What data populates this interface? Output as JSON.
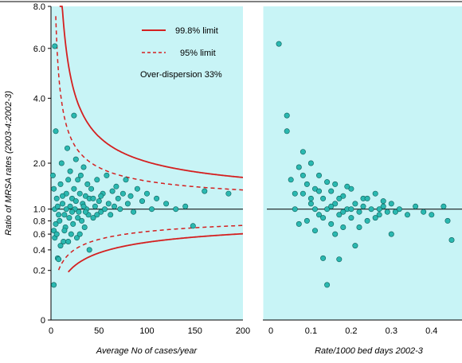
{
  "chart_data": [
    {
      "type": "scatter",
      "panel": "left",
      "xlabel": "Average No of cases/year",
      "ylabel": "Ratio of MRSA rates (2003-4:2002-3)",
      "xlim": [
        0,
        200
      ],
      "ylim": [
        0,
        8.0
      ],
      "y_scale": "sqrt",
      "x_ticks": [
        "0",
        "50",
        "100",
        "150",
        "200"
      ],
      "y_ticks": [
        "0",
        "0.2",
        "0.4",
        "0.6",
        "0.8",
        "1.0",
        "2.0",
        "4.0",
        "6.0",
        "8.0"
      ],
      "reference_line": 1.0,
      "legend": {
        "position": "top-right",
        "entries": [
          "99.8% limit",
          "95% limit"
        ],
        "note": "Over-dispersion 33%"
      },
      "limit_colors": {
        "limit_998": "#d42020",
        "limit_95": "#d42020"
      },
      "background": "#c8f4f6",
      "point_color": "#2ab8b0",
      "points": [
        {
          "x": 3,
          "y": 0.1
        },
        {
          "x": 5,
          "y": 2.9
        },
        {
          "x": 4,
          "y": 6.1
        },
        {
          "x": 3,
          "y": 0.65
        },
        {
          "x": 4,
          "y": 0.55
        },
        {
          "x": 6,
          "y": 0.6
        },
        {
          "x": 5,
          "y": 0.75
        },
        {
          "x": 7,
          "y": 0.31
        },
        {
          "x": 8,
          "y": 0.3
        },
        {
          "x": 2,
          "y": 1.7
        },
        {
          "x": 3,
          "y": 1.4
        },
        {
          "x": 4,
          "y": 1.0
        },
        {
          "x": 6,
          "y": 1.2
        },
        {
          "x": 8,
          "y": 0.9
        },
        {
          "x": 10,
          "y": 1.5
        },
        {
          "x": 11,
          "y": 2.0
        },
        {
          "x": 12,
          "y": 1.1
        },
        {
          "x": 13,
          "y": 0.5
        },
        {
          "x": 14,
          "y": 0.9
        },
        {
          "x": 15,
          "y": 0.7
        },
        {
          "x": 16,
          "y": 1.3
        },
        {
          "x": 17,
          "y": 2.4
        },
        {
          "x": 18,
          "y": 1.6
        },
        {
          "x": 19,
          "y": 0.85
        },
        {
          "x": 20,
          "y": 1.8
        },
        {
          "x": 21,
          "y": 0.6
        },
        {
          "x": 22,
          "y": 1.2
        },
        {
          "x": 23,
          "y": 0.75
        },
        {
          "x": 24,
          "y": 1.4
        },
        {
          "x": 25,
          "y": 1.0
        },
        {
          "x": 26,
          "y": 2.1
        },
        {
          "x": 27,
          "y": 0.55
        },
        {
          "x": 28,
          "y": 1.6
        },
        {
          "x": 29,
          "y": 0.95
        },
        {
          "x": 30,
          "y": 1.3
        },
        {
          "x": 31,
          "y": 1.7
        },
        {
          "x": 32,
          "y": 0.8
        },
        {
          "x": 33,
          "y": 1.1
        },
        {
          "x": 34,
          "y": 1.9
        },
        {
          "x": 35,
          "y": 0.7
        },
        {
          "x": 36,
          "y": 1.25
        },
        {
          "x": 37,
          "y": 1.0
        },
        {
          "x": 38,
          "y": 1.5
        },
        {
          "x": 39,
          "y": 0.9
        },
        {
          "x": 40,
          "y": 1.2
        },
        {
          "x": 42,
          "y": 1.4
        },
        {
          "x": 44,
          "y": 0.85
        },
        {
          "x": 46,
          "y": 1.05
        },
        {
          "x": 48,
          "y": 1.6
        },
        {
          "x": 50,
          "y": 1.15
        },
        {
          "x": 52,
          "y": 0.95
        },
        {
          "x": 54,
          "y": 1.3
        },
        {
          "x": 56,
          "y": 1.0
        },
        {
          "x": 58,
          "y": 1.7
        },
        {
          "x": 60,
          "y": 1.1
        },
        {
          "x": 62,
          "y": 0.9
        },
        {
          "x": 64,
          "y": 1.35
        },
        {
          "x": 66,
          "y": 1.05
        },
        {
          "x": 68,
          "y": 1.45
        },
        {
          "x": 70,
          "y": 1.2
        },
        {
          "x": 72,
          "y": 1.0
        },
        {
          "x": 75,
          "y": 1.3
        },
        {
          "x": 78,
          "y": 1.6
        },
        {
          "x": 80,
          "y": 1.1
        },
        {
          "x": 83,
          "y": 1.25
        },
        {
          "x": 86,
          "y": 0.95
        },
        {
          "x": 90,
          "y": 1.4
        },
        {
          "x": 95,
          "y": 1.15
        },
        {
          "x": 100,
          "y": 1.3
        },
        {
          "x": 105,
          "y": 1.0
        },
        {
          "x": 110,
          "y": 1.2
        },
        {
          "x": 120,
          "y": 1.1
        },
        {
          "x": 130,
          "y": 1.0
        },
        {
          "x": 140,
          "y": 1.05
        },
        {
          "x": 148,
          "y": 0.72
        },
        {
          "x": 160,
          "y": 1.35
        },
        {
          "x": 185,
          "y": 1.3
        },
        {
          "x": 24,
          "y": 3.4
        },
        {
          "x": 10,
          "y": 0.45
        },
        {
          "x": 18,
          "y": 0.5
        },
        {
          "x": 40,
          "y": 0.4
        },
        {
          "x": 14,
          "y": 0.65
        },
        {
          "x": 30,
          "y": 0.6
        },
        {
          "x": 12,
          "y": 1.25
        },
        {
          "x": 7,
          "y": 1.05
        },
        {
          "x": 9,
          "y": 0.8
        },
        {
          "x": 16,
          "y": 1.0
        },
        {
          "x": 20,
          "y": 1.05
        },
        {
          "x": 22,
          "y": 0.95
        },
        {
          "x": 26,
          "y": 1.15
        },
        {
          "x": 28,
          "y": 0.85
        },
        {
          "x": 34,
          "y": 1.05
        },
        {
          "x": 36,
          "y": 0.95
        },
        {
          "x": 44,
          "y": 1.2
        },
        {
          "x": 48,
          "y": 0.9
        },
        {
          "x": 52,
          "y": 1.25
        }
      ]
    },
    {
      "type": "scatter",
      "panel": "right",
      "xlabel": "Rate/1000 bed days 2002-3",
      "xlim": [
        0,
        0.45
      ],
      "ylim": [
        0,
        8.0
      ],
      "y_scale": "sqrt",
      "x_ticks": [
        "0",
        "0.1",
        "0.2",
        "0.3",
        "0.4"
      ],
      "reference_line": 1.0,
      "background": "#c8f4f6",
      "point_color": "#2ab8b0",
      "points": [
        {
          "x": 0.02,
          "y": 6.2
        },
        {
          "x": 0.04,
          "y": 3.4
        },
        {
          "x": 0.04,
          "y": 2.9
        },
        {
          "x": 0.05,
          "y": 1.6
        },
        {
          "x": 0.06,
          "y": 1.0
        },
        {
          "x": 0.07,
          "y": 1.9
        },
        {
          "x": 0.08,
          "y": 2.3
        },
        {
          "x": 0.08,
          "y": 1.3
        },
        {
          "x": 0.09,
          "y": 0.8
        },
        {
          "x": 0.09,
          "y": 1.5
        },
        {
          "x": 0.1,
          "y": 1.1
        },
        {
          "x": 0.1,
          "y": 2.0
        },
        {
          "x": 0.11,
          "y": 0.65
        },
        {
          "x": 0.11,
          "y": 1.4
        },
        {
          "x": 0.12,
          "y": 0.9
        },
        {
          "x": 0.12,
          "y": 1.7
        },
        {
          "x": 0.13,
          "y": 1.2
        },
        {
          "x": 0.13,
          "y": 0.31
        },
        {
          "x": 0.14,
          "y": 1.0
        },
        {
          "x": 0.14,
          "y": 0.1
        },
        {
          "x": 0.15,
          "y": 1.35
        },
        {
          "x": 0.15,
          "y": 0.75
        },
        {
          "x": 0.16,
          "y": 1.1
        },
        {
          "x": 0.16,
          "y": 1.5
        },
        {
          "x": 0.17,
          "y": 0.9
        },
        {
          "x": 0.17,
          "y": 0.3
        },
        {
          "x": 0.18,
          "y": 1.25
        },
        {
          "x": 0.18,
          "y": 0.7
        },
        {
          "x": 0.19,
          "y": 1.0
        },
        {
          "x": 0.2,
          "y": 1.4
        },
        {
          "x": 0.2,
          "y": 0.85
        },
        {
          "x": 0.21,
          "y": 0.45
        },
        {
          "x": 0.21,
          "y": 1.1
        },
        {
          "x": 0.22,
          "y": 0.95
        },
        {
          "x": 0.23,
          "y": 1.2
        },
        {
          "x": 0.24,
          "y": 0.8
        },
        {
          "x": 0.25,
          "y": 1.0
        },
        {
          "x": 0.26,
          "y": 1.3
        },
        {
          "x": 0.27,
          "y": 0.9
        },
        {
          "x": 0.28,
          "y": 1.05
        },
        {
          "x": 0.29,
          "y": 0.95
        },
        {
          "x": 0.3,
          "y": 1.1
        },
        {
          "x": 0.3,
          "y": 0.6
        },
        {
          "x": 0.32,
          "y": 1.0
        },
        {
          "x": 0.34,
          "y": 0.9
        },
        {
          "x": 0.36,
          "y": 1.05
        },
        {
          "x": 0.38,
          "y": 0.95
        },
        {
          "x": 0.4,
          "y": 0.9
        },
        {
          "x": 0.43,
          "y": 1.05
        },
        {
          "x": 0.44,
          "y": 0.8
        },
        {
          "x": 0.45,
          "y": 0.52
        },
        {
          "x": 0.06,
          "y": 1.3
        },
        {
          "x": 0.07,
          "y": 0.75
        },
        {
          "x": 0.08,
          "y": 1.7
        },
        {
          "x": 0.1,
          "y": 1.2
        },
        {
          "x": 0.11,
          "y": 1.0
        },
        {
          "x": 0.12,
          "y": 1.35
        },
        {
          "x": 0.13,
          "y": 0.85
        },
        {
          "x": 0.14,
          "y": 1.55
        },
        {
          "x": 0.15,
          "y": 1.05
        },
        {
          "x": 0.16,
          "y": 0.6
        },
        {
          "x": 0.17,
          "y": 1.2
        },
        {
          "x": 0.18,
          "y": 0.95
        },
        {
          "x": 0.19,
          "y": 1.45
        },
        {
          "x": 0.2,
          "y": 1.0
        },
        {
          "x": 0.22,
          "y": 0.7
        },
        {
          "x": 0.23,
          "y": 1.05
        },
        {
          "x": 0.24,
          "y": 1.2
        },
        {
          "x": 0.26,
          "y": 0.85
        },
        {
          "x": 0.27,
          "y": 1.0
        },
        {
          "x": 0.28,
          "y": 1.15
        },
        {
          "x": 0.31,
          "y": 0.95
        }
      ]
    }
  ]
}
